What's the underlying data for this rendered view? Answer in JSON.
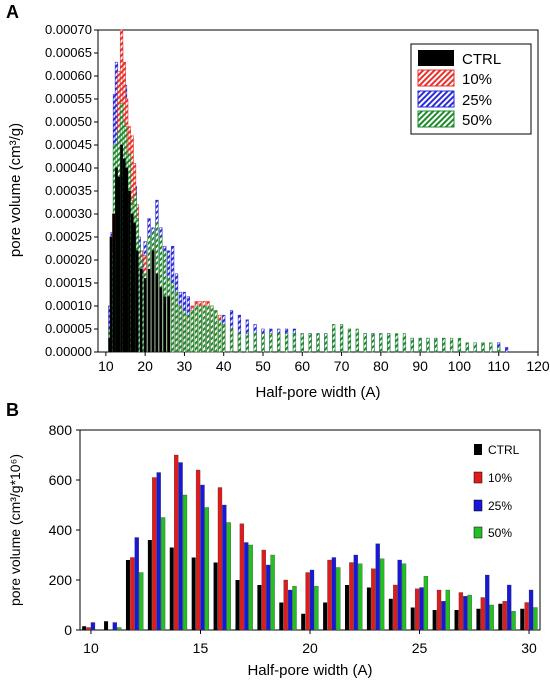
{
  "chart_data": [
    {
      "panel_label": "A",
      "type": "bar",
      "xlabel": "Half-pore width (A)",
      "ylabel": "pore volume (cm³/g)",
      "xlim": [
        8,
        120
      ],
      "ylim": [
        0,
        0.0007
      ],
      "xticks": [
        10,
        20,
        30,
        40,
        50,
        60,
        70,
        80,
        90,
        100,
        110,
        120
      ],
      "yticks": [
        "0.00000",
        "0.00005",
        "0.00010",
        "0.00015",
        "0.00020",
        "0.00025",
        "0.00030",
        "0.00035",
        "0.00040",
        "0.00045",
        "0.00050",
        "0.00055",
        "0.00060",
        "0.00065",
        "0.00070"
      ],
      "legend_position": "top-right",
      "series": [
        {
          "name": "CTRL",
          "color": "#000000",
          "pattern": "solid",
          "points": [
            [
              11.0,
              3e-05
            ],
            [
              11.3,
              0.00025
            ],
            [
              12.0,
              0.0003
            ],
            [
              12.7,
              0.0004
            ],
            [
              13.3,
              0.00038
            ],
            [
              14.0,
              0.00045
            ],
            [
              14.7,
              0.00042
            ],
            [
              15.3,
              0.0004
            ],
            [
              16.0,
              0.00035
            ],
            [
              16.7,
              0.0003
            ],
            [
              17.3,
              0.00028
            ],
            [
              18.0,
              0.00022
            ],
            [
              19.0,
              0.00018
            ],
            [
              20.0,
              0.00016
            ],
            [
              21.0,
              0.00018
            ],
            [
              22.0,
              0.00022
            ],
            [
              23.0,
              0.00017
            ],
            [
              24.0,
              0.00014
            ],
            [
              25.0,
              0.00012
            ],
            [
              26.0,
              0.00012
            ]
          ]
        },
        {
          "name": "10%",
          "color": "#e8322b",
          "pattern": "hatch",
          "points": [
            [
              11.3,
              5e-05
            ],
            [
              12.0,
              0.0003
            ],
            [
              12.7,
              0.00042
            ],
            [
              13.3,
              0.00061
            ],
            [
              14.0,
              0.0007
            ],
            [
              14.7,
              0.00063
            ],
            [
              15.3,
              0.00055
            ],
            [
              16.0,
              0.00049
            ],
            [
              16.7,
              0.00047
            ],
            [
              17.3,
              0.00041
            ],
            [
              18.0,
              0.00032
            ],
            [
              19.0,
              0.00022
            ],
            [
              20.0,
              0.00021
            ],
            [
              21.0,
              0.00023
            ],
            [
              22.0,
              0.00022
            ],
            [
              23.0,
              0.00024
            ],
            [
              24.0,
              0.00018
            ],
            [
              25.0,
              0.00015
            ],
            [
              26.0,
              0.00013
            ],
            [
              27.0,
              0.00012
            ],
            [
              28.0,
              0.00011
            ],
            [
              29.0,
              9e-05
            ],
            [
              30.0,
              8e-05
            ],
            [
              31.0,
              8e-05
            ],
            [
              32.0,
              0.0001
            ],
            [
              33.0,
              0.00011
            ],
            [
              34.0,
              0.00011
            ],
            [
              35.0,
              0.00011
            ],
            [
              36.0,
              0.00011
            ],
            [
              37.0,
              0.0001
            ],
            [
              38.0,
              9e-05
            ],
            [
              39.0,
              8e-05
            ],
            [
              40.0,
              6e-05
            ],
            [
              42.0,
              5e-05
            ],
            [
              44.0,
              4e-05
            ]
          ]
        },
        {
          "name": "25%",
          "color": "#2b2bd8",
          "pattern": "hatch",
          "points": [
            [
              11.0,
              0.0001
            ],
            [
              11.6,
              0.00026
            ],
            [
              12.2,
              0.00056
            ],
            [
              12.7,
              0.00063
            ],
            [
              13.3,
              0.00056
            ],
            [
              14.0,
              0.00067
            ],
            [
              14.5,
              0.00062
            ],
            [
              15.0,
              0.00058
            ],
            [
              15.5,
              0.00044
            ],
            [
              16.0,
              0.00043
            ],
            [
              16.5,
              0.00035
            ],
            [
              17.0,
              0.00033
            ],
            [
              17.5,
              0.00036
            ],
            [
              18.0,
              0.00026
            ],
            [
              18.5,
              0.00025
            ],
            [
              19.0,
              0.00022
            ],
            [
              19.5,
              0.00021
            ],
            [
              20.0,
              0.00024
            ],
            [
              21.0,
              0.00029
            ],
            [
              22.0,
              0.00027
            ],
            [
              23.0,
              0.00033
            ],
            [
              24.0,
              0.00027
            ],
            [
              25.0,
              0.00023
            ],
            [
              26.0,
              0.00022
            ],
            [
              27.0,
              0.00023
            ],
            [
              28.0,
              0.00017
            ],
            [
              29.0,
              0.00013
            ],
            [
              30.0,
              0.00013
            ],
            [
              31.0,
              0.00012
            ],
            [
              32.0,
              0.0001
            ],
            [
              34.0,
              8e-05
            ],
            [
              36.0,
              7e-05
            ],
            [
              38.0,
              7e-05
            ],
            [
              40.0,
              8e-05
            ],
            [
              42.0,
              9e-05
            ],
            [
              44.0,
              8e-05
            ],
            [
              46.0,
              7e-05
            ],
            [
              48.0,
              6e-05
            ],
            [
              50.0,
              5e-05
            ],
            [
              52.0,
              5e-05
            ],
            [
              54.0,
              5e-05
            ],
            [
              56.0,
              5e-05
            ],
            [
              58.0,
              5e-05
            ],
            [
              60.0,
              4e-05
            ],
            [
              62.0,
              4e-05
            ],
            [
              64.0,
              4e-05
            ],
            [
              66.0,
              4e-05
            ],
            [
              68.0,
              5e-05
            ],
            [
              70.0,
              5e-05
            ],
            [
              72.0,
              4e-05
            ],
            [
              74.0,
              4e-05
            ],
            [
              76.0,
              4e-05
            ],
            [
              78.0,
              4e-05
            ],
            [
              80.0,
              4e-05
            ],
            [
              82.0,
              4e-05
            ],
            [
              84.0,
              3e-05
            ],
            [
              86.0,
              3e-05
            ],
            [
              88.0,
              3e-05
            ],
            [
              90.0,
              3e-05
            ],
            [
              92.0,
              3e-05
            ],
            [
              94.0,
              3e-05
            ],
            [
              96.0,
              3e-05
            ],
            [
              98.0,
              2e-05
            ],
            [
              100.0,
              2e-05
            ],
            [
              102.0,
              2e-05
            ],
            [
              104.0,
              2e-05
            ],
            [
              106.0,
              2e-05
            ],
            [
              108.0,
              2e-05
            ],
            [
              110.0,
              2e-05
            ],
            [
              112.0,
              1e-05
            ]
          ]
        },
        {
          "name": "50%",
          "color": "#1f8a2c",
          "pattern": "hatch",
          "points": [
            [
              11.0,
              5e-05
            ],
            [
              11.6,
              0.00022
            ],
            [
              12.2,
              0.00045
            ],
            [
              12.7,
              0.00045
            ],
            [
              13.3,
              0.00048
            ],
            [
              14.0,
              0.00054
            ],
            [
              14.5,
              0.0005
            ],
            [
              15.0,
              0.00049
            ],
            [
              15.5,
              0.00043
            ],
            [
              16.0,
              0.00043
            ],
            [
              16.5,
              0.00033
            ],
            [
              17.0,
              0.00032
            ],
            [
              17.5,
              0.00034
            ],
            [
              18.0,
              0.00029
            ],
            [
              18.5,
              0.00023
            ],
            [
              19.0,
              0.0002
            ],
            [
              19.5,
              0.00017
            ],
            [
              20.0,
              0.00017
            ],
            [
              21.0,
              0.00025
            ],
            [
              22.0,
              0.00026
            ],
            [
              23.0,
              0.00028
            ],
            [
              24.0,
              0.00025
            ],
            [
              25.0,
              0.00022
            ],
            [
              26.0,
              0.00016
            ],
            [
              27.0,
              0.00015
            ],
            [
              28.0,
              0.00013
            ],
            [
              29.0,
              0.0001
            ],
            [
              30.0,
              9e-05
            ],
            [
              31.0,
              8e-05
            ],
            [
              32.0,
              9e-05
            ],
            [
              33.0,
              0.0001
            ],
            [
              34.0,
              0.0001
            ],
            [
              35.0,
              0.0001
            ],
            [
              36.0,
              0.0001
            ],
            [
              37.0,
              0.0001
            ],
            [
              38.0,
              9e-05
            ],
            [
              39.0,
              7e-05
            ],
            [
              40.0,
              6e-05
            ],
            [
              42.0,
              5e-05
            ],
            [
              44.0,
              4e-05
            ],
            [
              46.0,
              4e-05
            ],
            [
              48.0,
              4e-05
            ],
            [
              50.0,
              4e-05
            ],
            [
              52.0,
              4e-05
            ],
            [
              54.0,
              4e-05
            ],
            [
              56.0,
              4e-05
            ],
            [
              58.0,
              4e-05
            ],
            [
              60.0,
              4e-05
            ],
            [
              62.0,
              4e-05
            ],
            [
              64.0,
              4e-05
            ],
            [
              66.0,
              4e-05
            ],
            [
              68.0,
              6e-05
            ],
            [
              70.0,
              6e-05
            ],
            [
              72.0,
              5e-05
            ],
            [
              74.0,
              5e-05
            ],
            [
              76.0,
              4e-05
            ],
            [
              78.0,
              4e-05
            ],
            [
              80.0,
              4e-05
            ],
            [
              82.0,
              4e-05
            ],
            [
              84.0,
              4e-05
            ],
            [
              86.0,
              4e-05
            ],
            [
              88.0,
              3e-05
            ],
            [
              90.0,
              3e-05
            ],
            [
              92.0,
              3e-05
            ],
            [
              94.0,
              3e-05
            ],
            [
              96.0,
              3e-05
            ],
            [
              98.0,
              3e-05
            ],
            [
              100.0,
              3e-05
            ],
            [
              102.0,
              2e-05
            ],
            [
              104.0,
              2e-05
            ],
            [
              106.0,
              2e-05
            ],
            [
              108.0,
              2e-05
            ],
            [
              110.0,
              1e-05
            ]
          ]
        }
      ]
    },
    {
      "panel_label": "B",
      "type": "bar",
      "xlabel": "Half-pore width (A)",
      "ylabel": "pore volume (cm³/g*10⁶)",
      "xlim": [
        9.5,
        30.5
      ],
      "ylim": [
        0,
        800
      ],
      "xticks": [
        10,
        15,
        20,
        25,
        30
      ],
      "yticks": [
        0,
        200,
        400,
        600,
        800
      ],
      "legend_position": "right",
      "categories": [
        10,
        11,
        12,
        13,
        14,
        15,
        16,
        17,
        18,
        19,
        20,
        21,
        22,
        23,
        24,
        25,
        26,
        27,
        28,
        29,
        30
      ],
      "series": [
        {
          "name": "CTRL",
          "color": "#000000",
          "values": [
            15,
            35,
            280,
            360,
            330,
            290,
            270,
            200,
            180,
            110,
            65,
            110,
            180,
            170,
            125,
            90,
            80,
            80,
            85,
            105,
            85
          ]
        },
        {
          "name": "10%",
          "color": "#e01b1b",
          "values": [
            10,
            0,
            290,
            610,
            700,
            640,
            570,
            425,
            320,
            200,
            230,
            280,
            270,
            245,
            180,
            165,
            160,
            150,
            130,
            115,
            110
          ]
        },
        {
          "name": "25%",
          "color": "#1818d8",
          "values": [
            30,
            30,
            370,
            630,
            670,
            580,
            500,
            350,
            260,
            160,
            240,
            290,
            300,
            345,
            280,
            170,
            115,
            135,
            220,
            180,
            160
          ]
        },
        {
          "name": "50%",
          "color": "#22c022",
          "values": [
            0,
            10,
            230,
            450,
            540,
            490,
            430,
            340,
            300,
            175,
            175,
            250,
            265,
            285,
            265,
            215,
            160,
            140,
            100,
            75,
            90
          ]
        }
      ]
    }
  ]
}
